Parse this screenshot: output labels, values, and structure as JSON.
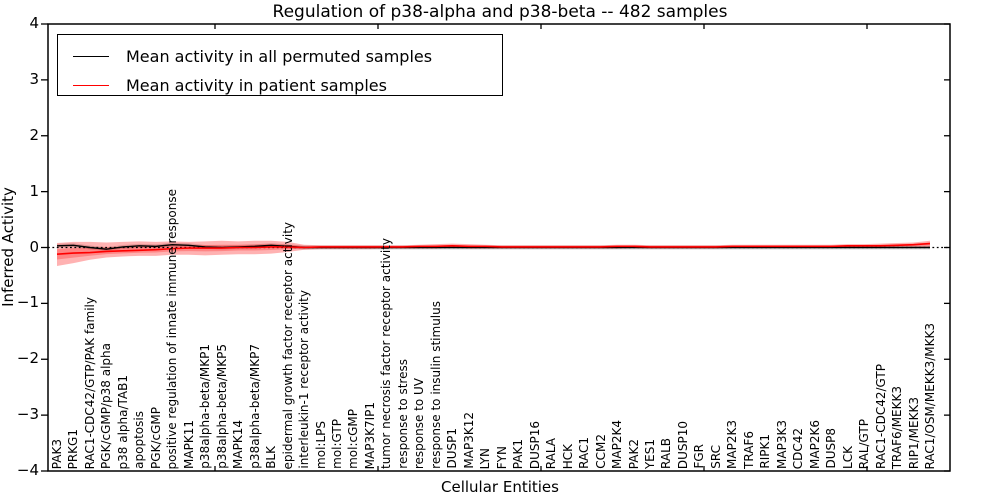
{
  "title": "Regulation of p38-alpha and p38-beta -- 482 samples",
  "axes": {
    "ylabel": "Inferred Activity",
    "xlabel": "Cellular Entities",
    "ytick_values": [
      4,
      3,
      2,
      1,
      0,
      -1,
      -2,
      -3,
      -4
    ],
    "ytick_labels": [
      "4",
      "3",
      "2",
      "1",
      "0",
      "−1",
      "−2",
      "−3",
      "−4"
    ]
  },
  "legend": {
    "items": [
      {
        "label": "Mean activity in all permuted samples",
        "color": "#000000"
      },
      {
        "label": "Mean activity in patient samples",
        "color": "#ff0000"
      }
    ]
  },
  "colors": {
    "permuted_line": "#000000",
    "patient_line": "#ff0000",
    "patient_band": "#ff0000",
    "permuted_band": "#000000",
    "zero_line": "#000000"
  },
  "chart_data": {
    "type": "line",
    "title": "Regulation of p38-alpha and p38-beta -- 482 samples",
    "xlabel": "Cellular Entities",
    "ylabel": "Inferred Activity",
    "ylim": [
      -4,
      4
    ],
    "grid": false,
    "legend_position": "upper left",
    "zero_line": true,
    "categories": [
      "PAK3",
      "PRKG1",
      "RAC1-CDC42/GTP/PAK family",
      "PGK/cGMP/p38 alpha",
      "p38 alpha/TAB1",
      "apoptosis",
      "PGK/cGMP",
      "positive regulation of innate immune response",
      "MAPK11",
      "p38alpha-beta/MKP1",
      "p38alpha-beta/MKP5",
      "MAPK14",
      "p38alpha-beta/MKP7",
      "BLK",
      "epidermal growth factor receptor activity",
      "interleukin-1 receptor activity",
      "mol:LPS",
      "mol:GTP",
      "mol:cGMP",
      "MAP3K7IP1",
      "tumor necrosis factor receptor activity",
      "response to stress",
      "response to UV",
      "response to insulin stimulus",
      "DUSP1",
      "MAP3K12",
      "LYN",
      "FYN",
      "PAK1",
      "DUSP16",
      "RALA",
      "HCK",
      "RAC1",
      "CCM2",
      "MAP2K4",
      "PAK2",
      "YES1",
      "RALB",
      "DUSP10",
      "FGR",
      "SRC",
      "MAP2K3",
      "TRAF6",
      "RIPK1",
      "MAP3K3",
      "CDC42",
      "MAP2K6",
      "DUSP8",
      "LCK",
      "RAL/GTP",
      "RAC1-CDC42/GTP",
      "TRAF6/MEKK3",
      "RIP1/MEKK3",
      "RAC1/OSM/MEKK3/MKK3"
    ],
    "series": [
      {
        "name": "Mean activity in all permuted samples",
        "color": "#000000",
        "values": [
          0.03,
          0.04,
          0.0,
          -0.03,
          0.01,
          0.03,
          0.02,
          0.05,
          0.04,
          0.01,
          0.0,
          0.01,
          0.02,
          0.04,
          0.02,
          0.0,
          0.0,
          0.0,
          0.0,
          0.0,
          0.0,
          0.0,
          0.0,
          0.0,
          0.0,
          0.0,
          0.0,
          0.0,
          0.0,
          0.0,
          0.0,
          0.0,
          0.0,
          0.0,
          0.0,
          0.0,
          0.0,
          0.0,
          0.0,
          0.0,
          0.0,
          0.0,
          0.0,
          0.0,
          0.0,
          0.0,
          0.0,
          0.0,
          0.0,
          0.0,
          0.0,
          0.0,
          0.0,
          0.0
        ],
        "band_halfwidth": 0.035
      },
      {
        "name": "Mean activity in patient samples",
        "color": "#ff0000",
        "values": [
          -0.12,
          -0.1,
          -0.09,
          -0.07,
          -0.06,
          -0.05,
          -0.04,
          -0.02,
          -0.01,
          -0.01,
          -0.01,
          0.0,
          0.0,
          0.01,
          0.01,
          0.0,
          0.01,
          0.01,
          0.01,
          0.01,
          0.01,
          0.01,
          0.02,
          0.02,
          0.03,
          0.02,
          0.02,
          0.01,
          0.01,
          0.01,
          0.01,
          0.01,
          0.01,
          0.01,
          0.02,
          0.02,
          0.01,
          0.01,
          0.01,
          0.01,
          0.01,
          0.02,
          0.02,
          0.02,
          0.02,
          0.02,
          0.02,
          0.02,
          0.03,
          0.03,
          0.03,
          0.04,
          0.05,
          0.07
        ],
        "band_upper": [
          0.08,
          0.1,
          0.1,
          0.09,
          0.1,
          0.11,
          0.1,
          0.11,
          0.1,
          0.11,
          0.12,
          0.11,
          0.12,
          0.12,
          0.1,
          0.05,
          0.04,
          0.04,
          0.04,
          0.04,
          0.04,
          0.04,
          0.05,
          0.06,
          0.07,
          0.06,
          0.05,
          0.04,
          0.04,
          0.04,
          0.04,
          0.04,
          0.04,
          0.04,
          0.05,
          0.05,
          0.04,
          0.04,
          0.04,
          0.04,
          0.04,
          0.05,
          0.05,
          0.05,
          0.05,
          0.05,
          0.05,
          0.05,
          0.06,
          0.06,
          0.07,
          0.08,
          0.09,
          0.12
        ],
        "band_lower": [
          -0.33,
          -0.28,
          -0.22,
          -0.18,
          -0.16,
          -0.15,
          -0.15,
          -0.13,
          -0.13,
          -0.14,
          -0.13,
          -0.12,
          -0.12,
          -0.11,
          -0.08,
          -0.04,
          -0.03,
          -0.03,
          -0.03,
          -0.03,
          -0.02,
          -0.02,
          -0.02,
          -0.02,
          -0.01,
          -0.02,
          -0.02,
          -0.02,
          -0.02,
          -0.02,
          -0.02,
          -0.02,
          -0.02,
          -0.02,
          -0.02,
          -0.01,
          -0.02,
          -0.02,
          -0.02,
          -0.02,
          -0.02,
          -0.01,
          -0.01,
          -0.01,
          -0.01,
          -0.01,
          -0.01,
          -0.01,
          -0.01,
          0.0,
          0.0,
          0.0,
          0.01,
          0.01
        ]
      }
    ]
  }
}
